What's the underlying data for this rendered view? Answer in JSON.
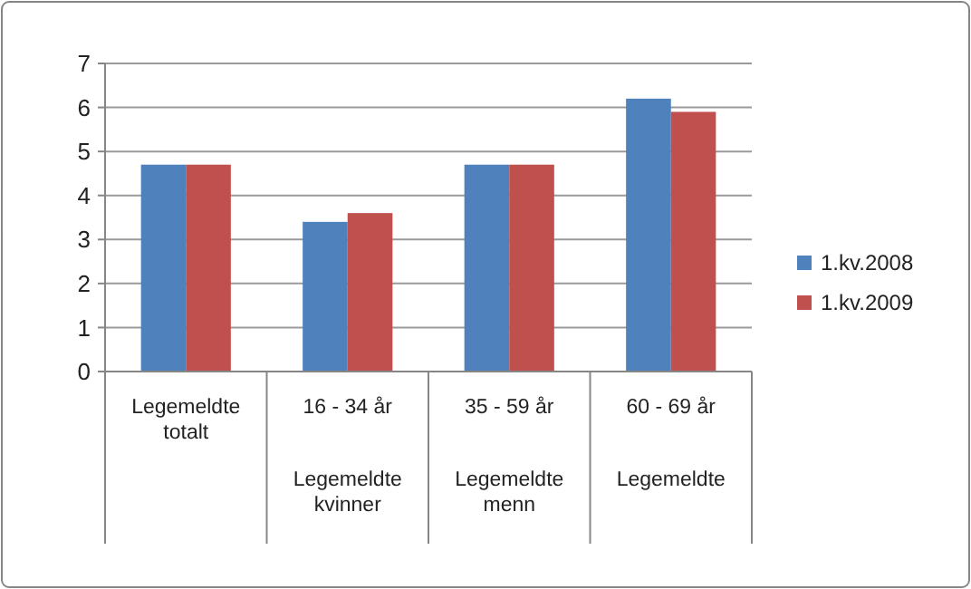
{
  "chart_data": {
    "type": "bar",
    "categories": [
      "Legemeldte totalt",
      "16 - 34 år\nLegemeldte kvinner",
      "35 - 59 år\nLegemeldte menn",
      "60 - 69 år\nLegemeldte"
    ],
    "series": [
      {
        "name": "1.kv.2008",
        "color": "#4f81bd",
        "values": [
          4.7,
          3.4,
          4.7,
          6.2
        ]
      },
      {
        "name": "1.kv.2009",
        "color": "#c0504d",
        "values": [
          4.7,
          3.6,
          4.7,
          5.9
        ]
      }
    ],
    "ylim": [
      0,
      7
    ],
    "yticks": [
      0,
      1,
      2,
      3,
      4,
      5,
      6,
      7
    ],
    "grid": "y",
    "legend": "right"
  }
}
